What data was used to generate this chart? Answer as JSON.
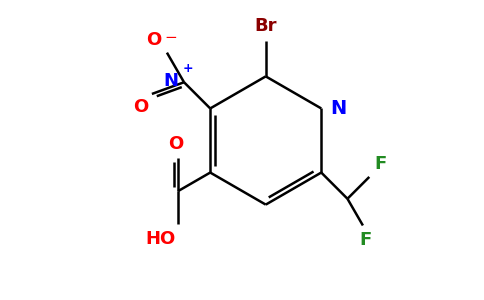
{
  "bg_color": "#ffffff",
  "atom_colors": {
    "C": "#000000",
    "N_ring": "#0000ff",
    "N_nitro": "#0000ff",
    "O": "#ff0000",
    "Br": "#8b0000",
    "F": "#228b22"
  },
  "bond_color": "#000000",
  "bond_width": 1.8,
  "figsize": [
    4.84,
    3.0
  ],
  "dpi": 100,
  "xlim": [
    0,
    10
  ],
  "ylim": [
    0,
    6.2
  ]
}
